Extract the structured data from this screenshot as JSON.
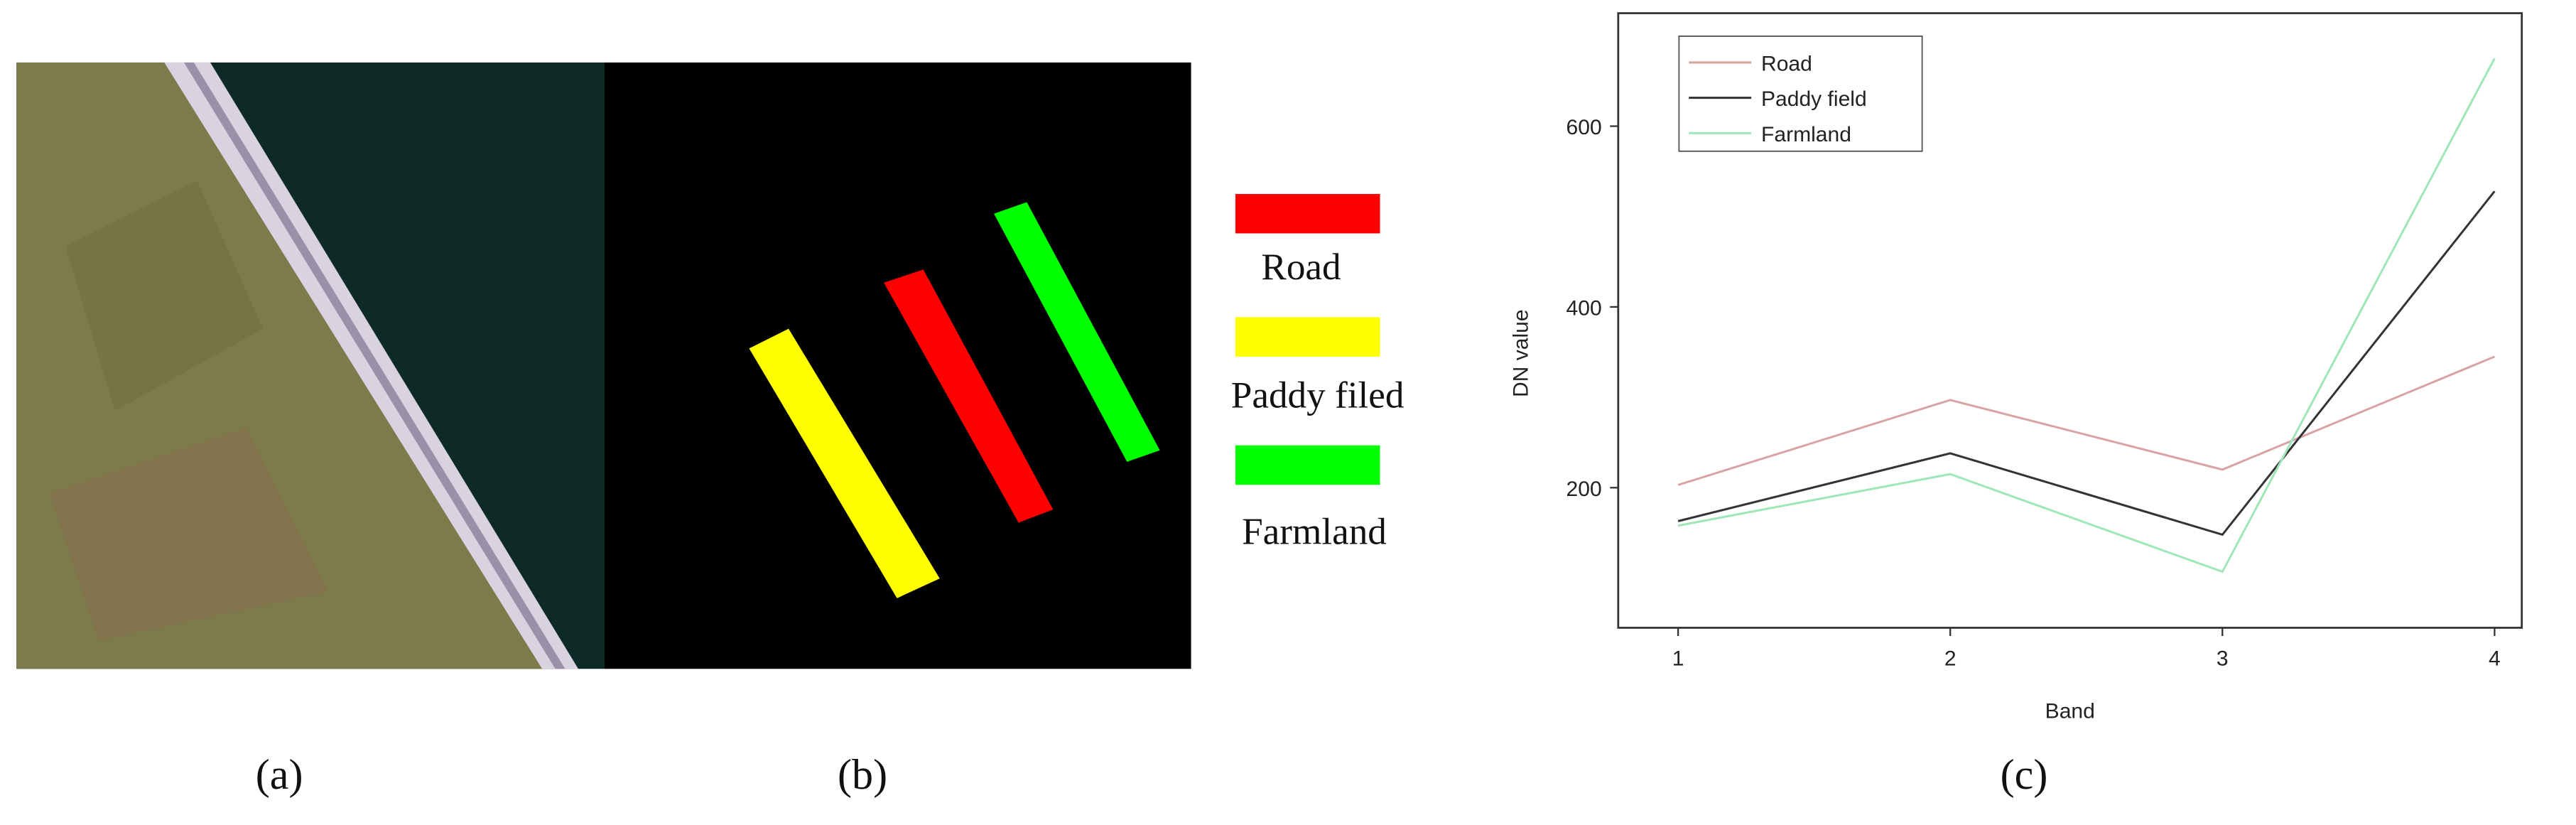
{
  "panels": {
    "a": {
      "caption": "(a)"
    },
    "b": {
      "caption": "(b)",
      "legend": [
        "Road",
        "Paddy filed",
        "Farmland"
      ]
    },
    "c": {
      "caption": "(c)"
    }
  },
  "chart_data": {
    "type": "line",
    "x_label": "Band",
    "y_label": "DN value",
    "x": [
      1,
      2,
      3,
      4
    ],
    "xlim": [
      0.78,
      4.1
    ],
    "xticks": [
      1,
      2,
      3,
      4
    ],
    "ylim": [
      45,
      725
    ],
    "yticks": [
      200,
      400,
      600
    ],
    "legend_position": "upper left",
    "series": [
      {
        "name": "Road",
        "color": "#d9a3a3",
        "values": [
          203,
          297,
          220,
          345
        ]
      },
      {
        "name": "Paddy field",
        "color": "#333333",
        "values": [
          163,
          238,
          148,
          528
        ]
      },
      {
        "name": "Farmland",
        "color": "#9fe6b8",
        "values": [
          158,
          215,
          107,
          675
        ]
      }
    ]
  }
}
